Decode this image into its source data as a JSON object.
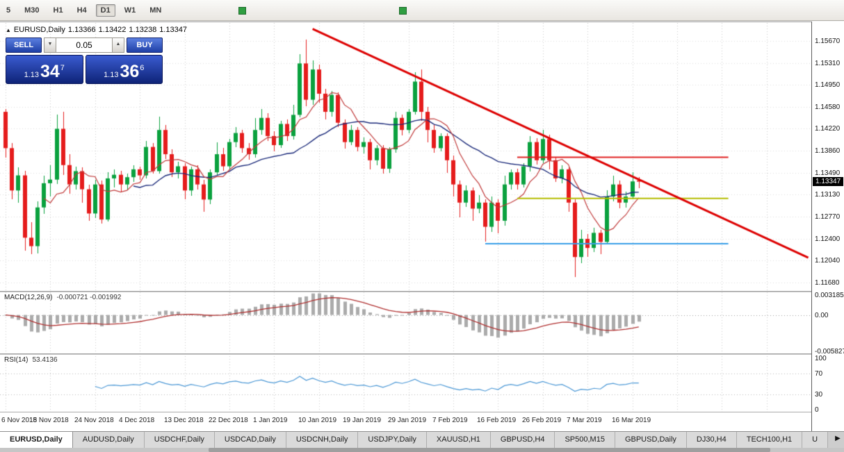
{
  "toolbar": {
    "timeframes": [
      {
        "label": "5",
        "active": false
      },
      {
        "label": "M30",
        "active": false
      },
      {
        "label": "H1",
        "active": false
      },
      {
        "label": "H4",
        "active": false
      },
      {
        "label": "D1",
        "active": true
      },
      {
        "label": "W1",
        "active": false
      },
      {
        "label": "MN",
        "active": false
      }
    ]
  },
  "icons": {
    "collapse": "▲",
    "spin_up": "▲",
    "spin_down": "▼",
    "scroll_right": "▶"
  },
  "chart_header": {
    "symbol": "EURUSD,Daily",
    "open": "1.13366",
    "high": "1.13422",
    "low": "1.13238",
    "close": "1.13347"
  },
  "trade_panel": {
    "sell_label": "SELL",
    "buy_label": "BUY",
    "volume": "0.05",
    "sell_price": {
      "base": "1.13",
      "big": "34",
      "sup": "7"
    },
    "buy_price": {
      "base": "1.13",
      "big": "36",
      "sup": "6"
    }
  },
  "price_axis": {
    "labels": [
      "1.15670",
      "1.15310",
      "1.14950",
      "1.14580",
      "1.14220",
      "1.13860",
      "1.13490",
      "1.13130",
      "1.12770",
      "1.12400",
      "1.12040",
      "1.11680"
    ],
    "current": "1.13347"
  },
  "indicators": {
    "macd": {
      "title": "MACD(12,26,9)",
      "values": "-0.000721 -0.001992",
      "scale": [
        "0.003185",
        "0.00",
        "-0.005827"
      ]
    },
    "rsi": {
      "title": "RSI(14)",
      "value": "53.4136",
      "scale": [
        "100",
        "70",
        "30",
        "0"
      ]
    }
  },
  "date_axis": {
    "labels": [
      "6 Nov 2018",
      "15 Nov 2018",
      "24 Nov 2018",
      "4 Dec 2018",
      "13 Dec 2018",
      "22 Dec 2018",
      "1 Jan 2019",
      "10 Jan 2019",
      "19 Jan 2019",
      "29 Jan 2019",
      "7 Feb 2019",
      "16 Feb 2019",
      "26 Feb 2019",
      "7 Mar 2019",
      "16 Mar 2019"
    ]
  },
  "tabs": {
    "items": [
      {
        "label": "EURUSD,Daily",
        "active": true
      },
      {
        "label": "AUDUSD,Daily",
        "active": false
      },
      {
        "label": "USDCHF,Daily",
        "active": false
      },
      {
        "label": "USDCAD,Daily",
        "active": false
      },
      {
        "label": "USDCNH,Daily",
        "active": false
      },
      {
        "label": "USDJPY,Daily",
        "active": false
      },
      {
        "label": "XAUUSD,H1",
        "active": false
      },
      {
        "label": "GBPUSD,H4",
        "active": false
      },
      {
        "label": "SP500,M15",
        "active": false
      },
      {
        "label": "GBPUSD,Daily",
        "active": false
      },
      {
        "label": "DJ30,H4",
        "active": false
      },
      {
        "label": "TECH100,H1",
        "active": false
      },
      {
        "label": "U",
        "active": false
      }
    ]
  },
  "chart_data": {
    "type": "candlestick",
    "symbol": "EURUSD",
    "timeframe": "Daily",
    "price_range": {
      "top": 1.1597,
      "bottom": 1.1154
    },
    "tick_every": 7,
    "colors": {
      "candle_up": "#0aa13e",
      "candle_down": "#e51c1c",
      "ma_fast": "#c03a3a",
      "ma_slow": "#1b2a7a",
      "trendline": "#dd0000",
      "hline_red": "#e02020",
      "hline_olive": "#b4bd00",
      "hline_blue": "#3a9fe8",
      "macd_histogram": "#ababab",
      "macd_signal": "#b03030",
      "rsi_line": "#4a97d5",
      "grid": "#c9c9c9"
    },
    "candles": [
      [
        1.145,
        1.1455,
        1.1375,
        1.139
      ],
      [
        1.139,
        1.1398,
        1.1305,
        1.132
      ],
      [
        1.132,
        1.1358,
        1.13,
        1.1345
      ],
      [
        1.1345,
        1.1352,
        1.122,
        1.1242
      ],
      [
        1.1242,
        1.1268,
        1.1215,
        1.1228
      ],
      [
        1.1228,
        1.1302,
        1.1216,
        1.1292
      ],
      [
        1.1292,
        1.1345,
        1.1282,
        1.1332
      ],
      [
        1.1332,
        1.1362,
        1.131,
        1.1338
      ],
      [
        1.1338,
        1.1445,
        1.133,
        1.1422
      ],
      [
        1.1422,
        1.145,
        1.1345,
        1.1362
      ],
      [
        1.1362,
        1.138,
        1.1315,
        1.133
      ],
      [
        1.133,
        1.136,
        1.1322,
        1.1352
      ],
      [
        1.1352,
        1.1358,
        1.13,
        1.1322
      ],
      [
        1.1322,
        1.133,
        1.127,
        1.1282
      ],
      [
        1.1282,
        1.1338,
        1.1275,
        1.133
      ],
      [
        1.133,
        1.1336,
        1.1265,
        1.1272
      ],
      [
        1.1272,
        1.135,
        1.1268,
        1.134
      ],
      [
        1.134,
        1.1355,
        1.1325,
        1.1346
      ],
      [
        1.1346,
        1.1352,
        1.1318,
        1.133
      ],
      [
        1.133,
        1.1348,
        1.1322,
        1.1342
      ],
      [
        1.1342,
        1.1362,
        1.1335,
        1.1355
      ],
      [
        1.1355,
        1.136,
        1.1338,
        1.1345
      ],
      [
        1.1345,
        1.1402,
        1.134,
        1.1392
      ],
      [
        1.1392,
        1.1398,
        1.1348,
        1.1352
      ],
      [
        1.1352,
        1.1442,
        1.1348,
        1.142
      ],
      [
        1.142,
        1.1428,
        1.1372,
        1.138
      ],
      [
        1.138,
        1.1388,
        1.1342,
        1.135
      ],
      [
        1.135,
        1.1368,
        1.134,
        1.136
      ],
      [
        1.136,
        1.1365,
        1.1305,
        1.132
      ],
      [
        1.132,
        1.136,
        1.1312,
        1.1355
      ],
      [
        1.1355,
        1.1362,
        1.1322,
        1.133
      ],
      [
        1.133,
        1.1338,
        1.1285,
        1.1305
      ],
      [
        1.1305,
        1.1355,
        1.1298,
        1.135
      ],
      [
        1.135,
        1.14,
        1.1345,
        1.138
      ],
      [
        1.138,
        1.139,
        1.1352,
        1.136
      ],
      [
        1.136,
        1.1405,
        1.1355,
        1.14
      ],
      [
        1.14,
        1.1425,
        1.1392,
        1.1415
      ],
      [
        1.1415,
        1.142,
        1.1382,
        1.139
      ],
      [
        1.139,
        1.1398,
        1.137,
        1.138
      ],
      [
        1.138,
        1.144,
        1.1375,
        1.142
      ],
      [
        1.142,
        1.1455,
        1.1412,
        1.144
      ],
      [
        1.144,
        1.1448,
        1.1402,
        1.141
      ],
      [
        1.141,
        1.1418,
        1.1385,
        1.1395
      ],
      [
        1.1395,
        1.1435,
        1.139,
        1.143
      ],
      [
        1.143,
        1.1438,
        1.1402,
        1.141
      ],
      [
        1.141,
        1.1462,
        1.1405,
        1.1445
      ],
      [
        1.1445,
        1.1545,
        1.144,
        1.153
      ],
      [
        1.153,
        1.157,
        1.146,
        1.147
      ],
      [
        1.147,
        1.1535,
        1.1462,
        1.152
      ],
      [
        1.152,
        1.1528,
        1.1465,
        1.148
      ],
      [
        1.148,
        1.1488,
        1.1438,
        1.145
      ],
      [
        1.145,
        1.1485,
        1.1442,
        1.1478
      ],
      [
        1.1478,
        1.1482,
        1.1425,
        1.1432
      ],
      [
        1.1432,
        1.1438,
        1.139,
        1.14
      ],
      [
        1.14,
        1.1428,
        1.1395,
        1.142
      ],
      [
        1.142,
        1.1425,
        1.1385,
        1.1392
      ],
      [
        1.1392,
        1.1408,
        1.1382,
        1.14
      ],
      [
        1.14,
        1.1405,
        1.1355,
        1.137
      ],
      [
        1.137,
        1.1395,
        1.1362,
        1.139
      ],
      [
        1.139,
        1.1395,
        1.1348,
        1.1356
      ],
      [
        1.1356,
        1.1392,
        1.135,
        1.1388
      ],
      [
        1.1388,
        1.145,
        1.1382,
        1.144
      ],
      [
        1.144,
        1.1446,
        1.1412,
        1.142
      ],
      [
        1.142,
        1.1455,
        1.1415,
        1.145
      ],
      [
        1.145,
        1.1515,
        1.1445,
        1.15
      ],
      [
        1.15,
        1.152,
        1.1435,
        1.145
      ],
      [
        1.145,
        1.1458,
        1.14,
        1.142
      ],
      [
        1.142,
        1.1428,
        1.1382,
        1.139
      ],
      [
        1.139,
        1.1415,
        1.1385,
        1.141
      ],
      [
        1.141,
        1.1415,
        1.135,
        1.137
      ],
      [
        1.137,
        1.1378,
        1.131,
        1.133
      ],
      [
        1.133,
        1.1336,
        1.1275,
        1.13
      ],
      [
        1.13,
        1.1328,
        1.1292,
        1.132
      ],
      [
        1.132,
        1.1325,
        1.127,
        1.129
      ],
      [
        1.129,
        1.1312,
        1.1282,
        1.13
      ],
      [
        1.13,
        1.1305,
        1.1235,
        1.126
      ],
      [
        1.126,
        1.131,
        1.1252,
        1.13
      ],
      [
        1.13,
        1.1306,
        1.125,
        1.127
      ],
      [
        1.127,
        1.1345,
        1.1262,
        1.133
      ],
      [
        1.133,
        1.1355,
        1.1322,
        1.135
      ],
      [
        1.135,
        1.1356,
        1.1322,
        1.133
      ],
      [
        1.133,
        1.1365,
        1.1325,
        1.136
      ],
      [
        1.136,
        1.141,
        1.1352,
        1.14
      ],
      [
        1.14,
        1.1406,
        1.1362,
        1.137
      ],
      [
        1.137,
        1.142,
        1.1365,
        1.1405
      ],
      [
        1.1405,
        1.1412,
        1.1355,
        1.137
      ],
      [
        1.137,
        1.1376,
        1.1335,
        1.134
      ],
      [
        1.134,
        1.1362,
        1.1332,
        1.1355
      ],
      [
        1.1355,
        1.1358,
        1.1285,
        1.13
      ],
      [
        1.13,
        1.1305,
        1.1177,
        1.121
      ],
      [
        1.121,
        1.1255,
        1.12,
        1.124
      ],
      [
        1.124,
        1.1248,
        1.121,
        1.1225
      ],
      [
        1.1225,
        1.1258,
        1.1218,
        1.125
      ],
      [
        1.125,
        1.1255,
        1.1215,
        1.1235
      ],
      [
        1.1235,
        1.132,
        1.123,
        1.131
      ],
      [
        1.131,
        1.1345,
        1.1302,
        1.133
      ],
      [
        1.133,
        1.1336,
        1.129,
        1.13
      ],
      [
        1.13,
        1.1318,
        1.1292,
        1.131
      ],
      [
        1.131,
        1.135,
        1.1305,
        1.1335
      ],
      [
        1.13366,
        1.13422,
        1.13238,
        1.13347
      ]
    ],
    "overlays": {
      "ma_fast_period": 7,
      "ma_slow_period": 21,
      "trendline": {
        "from_index": 48,
        "from_price": 1.1587,
        "to_index": 125.5,
        "to_price": 1.1209
      },
      "hlines": [
        {
          "price": 1.1375,
          "from_index": 80,
          "to_index": 113,
          "color_key": "hline_red"
        },
        {
          "price": 1.1307,
          "from_index": 80,
          "to_index": 113,
          "color_key": "hline_olive"
        },
        {
          "price": 1.1232,
          "from_index": 75,
          "to_index": 113,
          "color_key": "hline_blue"
        }
      ]
    },
    "macd": {
      "fast": 12,
      "slow": 26,
      "signal": 9,
      "max": 0.003185,
      "min": -0.005827
    },
    "rsi": {
      "period": 14,
      "levels": [
        70,
        30
      ]
    }
  }
}
